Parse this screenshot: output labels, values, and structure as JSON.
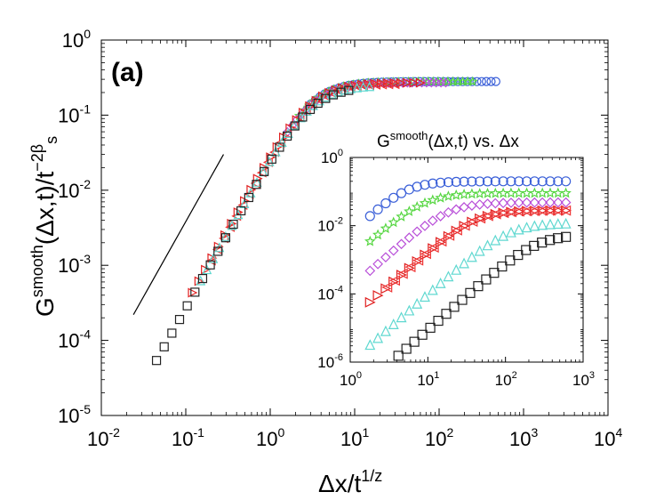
{
  "panel_label": "(a)",
  "chart_data": [
    {
      "id": "main",
      "type": "scatter",
      "xscale": "log",
      "yscale": "log",
      "xlim": [
        0.01,
        10000
      ],
      "ylim": [
        1e-05,
        1
      ],
      "x_ticks": [
        {
          "value": 0.01,
          "base": "10",
          "exp": "-2"
        },
        {
          "value": 0.1,
          "base": "10",
          "exp": "-1"
        },
        {
          "value": 1,
          "base": "10",
          "exp": "0"
        },
        {
          "value": 10,
          "base": "10",
          "exp": "1"
        },
        {
          "value": 100,
          "base": "10",
          "exp": "2"
        },
        {
          "value": 1000,
          "base": "10",
          "exp": "3"
        },
        {
          "value": 10000,
          "base": "10",
          "exp": "4"
        }
      ],
      "y_ticks": [
        {
          "value": 1e-05,
          "base": "10",
          "exp": "-5"
        },
        {
          "value": 0.0001,
          "base": "10",
          "exp": "-4"
        },
        {
          "value": 0.001,
          "base": "10",
          "exp": "-3"
        },
        {
          "value": 0.01,
          "base": "10",
          "exp": "-2"
        },
        {
          "value": 0.1,
          "base": "10",
          "exp": "-1"
        },
        {
          "value": 1,
          "base": "10",
          "exp": "0"
        }
      ],
      "xlabel": {
        "text": "Δx/t",
        "sup": "1/z"
      },
      "ylabel": {
        "pre": "G",
        "sup": "smooth",
        "mid": "(Δx,t)/t",
        "sup2": "−2β",
        "sub": "s"
      },
      "reference_line": {
        "x": [
          0.024,
          0.28
        ],
        "y": [
          0.00022,
          0.03
        ]
      },
      "series": [
        {
          "name": "circle",
          "marker": "circle",
          "color": "#3a5fd8",
          "x_range": [
            3,
            470
          ],
          "count": 40,
          "plateau": 0.28,
          "xc": 3,
          "slope": 2
        },
        {
          "name": "star",
          "marker": "star",
          "color": "#55d640",
          "x_range": [
            2.2,
            250
          ],
          "count": 36,
          "plateau": 0.28,
          "xc": 3,
          "slope": 2
        },
        {
          "name": "diamond",
          "marker": "diamond",
          "color": "#b84ed8",
          "x_range": [
            1.6,
            120
          ],
          "count": 34,
          "plateau": 0.27,
          "xc": 3,
          "slope": 2
        },
        {
          "name": "triangle-right",
          "marker": "triangle-right",
          "color": "#e02020",
          "x_range": [
            0.12,
            60
          ],
          "count": 36,
          "plateau": 0.27,
          "xc": 3,
          "slope": 2
        },
        {
          "name": "triangle-left",
          "marker": "triangle-left",
          "color": "#ef3535",
          "x_range": [
            0.2,
            30
          ],
          "count": 30,
          "plateau": 0.26,
          "xc": 3,
          "slope": 2
        },
        {
          "name": "triangle-up",
          "marker": "triangle-up",
          "color": "#5fd8d0",
          "x_range": [
            0.15,
            15
          ],
          "count": 28,
          "plateau": 0.25,
          "xc": 3,
          "slope": 2
        },
        {
          "name": "square",
          "marker": "square",
          "color": "#222222",
          "x_range": [
            0.045,
            8.5
          ],
          "count": 26,
          "plateau": 0.24,
          "xc": 3,
          "slope": 2
        }
      ]
    },
    {
      "id": "inset",
      "type": "scatter",
      "title": {
        "pre": "G",
        "sup": "smooth",
        "post": "(Δx,t) vs. Δx"
      },
      "xscale": "log",
      "yscale": "log",
      "xlim": [
        1,
        1000
      ],
      "ylim": [
        1e-06,
        1
      ],
      "x_ticks": [
        {
          "value": 1,
          "base": "10",
          "exp": "0"
        },
        {
          "value": 10,
          "base": "10",
          "exp": "1"
        },
        {
          "value": 100,
          "base": "10",
          "exp": "2"
        },
        {
          "value": 1000,
          "base": "10",
          "exp": "3"
        }
      ],
      "y_ticks": [
        {
          "value": 1e-06,
          "base": "10",
          "exp": "-6"
        },
        {
          "value": 0.0001,
          "base": "10",
          "exp": "-4"
        },
        {
          "value": 0.01,
          "base": "10",
          "exp": "-2"
        },
        {
          "value": 1,
          "base": "10",
          "exp": "0"
        }
      ],
      "series": [
        {
          "name": "circle",
          "marker": "circle",
          "color": "#3a5fd8",
          "x_range": [
            1.8,
            600
          ],
          "count": 26,
          "plateau": 0.2,
          "xc": 5,
          "slope": 2.2
        },
        {
          "name": "star",
          "marker": "star",
          "color": "#55d640",
          "x_range": [
            1.8,
            600
          ],
          "count": 26,
          "plateau": 0.09,
          "xc": 9,
          "slope": 2
        },
        {
          "name": "diamond",
          "marker": "diamond",
          "color": "#b84ed8",
          "x_range": [
            1.8,
            600
          ],
          "count": 26,
          "plateau": 0.048,
          "xc": 18,
          "slope": 2
        },
        {
          "name": "triangle-right",
          "marker": "triangle-right",
          "color": "#e02020",
          "x_range": [
            1.8,
            600
          ],
          "count": 26,
          "plateau": 0.028,
          "xc": 40,
          "slope": 2
        },
        {
          "name": "triangle-left",
          "marker": "triangle-left",
          "color": "#ef3535",
          "x_range": [
            3,
            600
          ],
          "count": 24,
          "plateau": 0.028,
          "xc": 40,
          "slope": 2
        },
        {
          "name": "triangle-up",
          "marker": "triangle-up",
          "color": "#5fd8d0",
          "x_range": [
            1.8,
            600
          ],
          "count": 26,
          "plateau": 0.012,
          "xc": 110,
          "slope": 2
        },
        {
          "name": "square",
          "marker": "square",
          "color": "#222222",
          "x_range": [
            2.6,
            600
          ],
          "count": 24,
          "plateau": 0.0055,
          "xc": 250,
          "slope": 2
        }
      ]
    }
  ]
}
